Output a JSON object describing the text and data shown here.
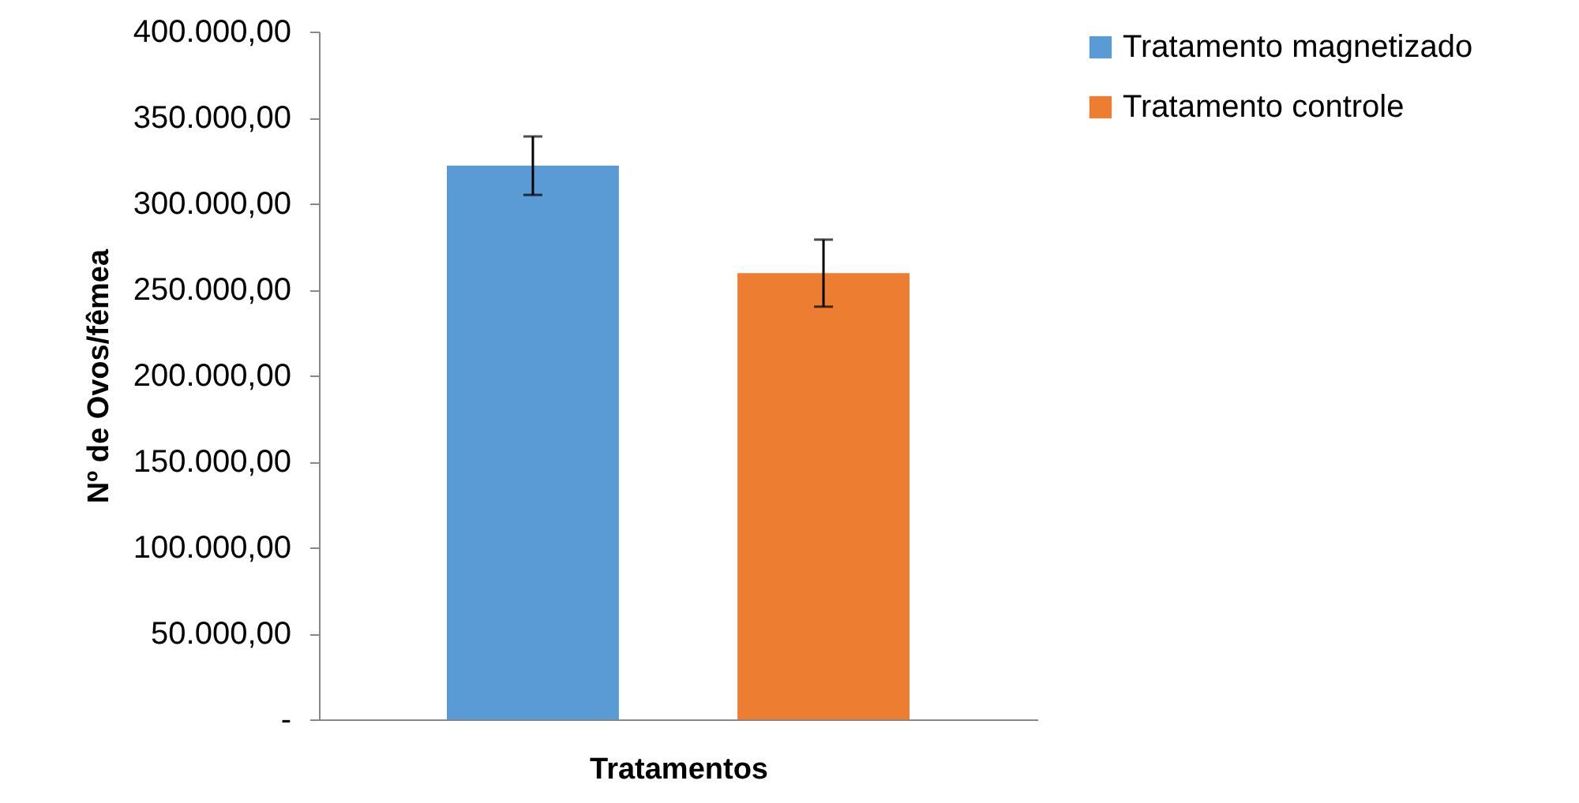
{
  "chart_data": {
    "type": "bar",
    "xlabel": "Tratamentos",
    "ylabel": "Nº de Ovos/fêmea",
    "categories": [
      null
    ],
    "series": [
      {
        "name": "Tratamento magnetizado",
        "color": "#5b9bd5",
        "values": [
          322000
        ],
        "errors": [
          17000
        ]
      },
      {
        "name": "Tratamento controle",
        "color": "#ed7d31",
        "values": [
          259500
        ],
        "errors": [
          19500
        ]
      }
    ],
    "ylim": [
      0,
      400000
    ],
    "yticks": [
      {
        "value": 0,
        "label": "-"
      },
      {
        "value": 50000,
        "label": "50.000,00"
      },
      {
        "value": 100000,
        "label": "100.000,00"
      },
      {
        "value": 150000,
        "label": "150.000,00"
      },
      {
        "value": 200000,
        "label": "200.000,00"
      },
      {
        "value": 250000,
        "label": "250.000,00"
      },
      {
        "value": 300000,
        "label": "300.000,00"
      },
      {
        "value": 350000,
        "label": "350.000,00"
      },
      {
        "value": 400000,
        "label": "400.000,00"
      }
    ],
    "grid": false,
    "legend": "right"
  }
}
